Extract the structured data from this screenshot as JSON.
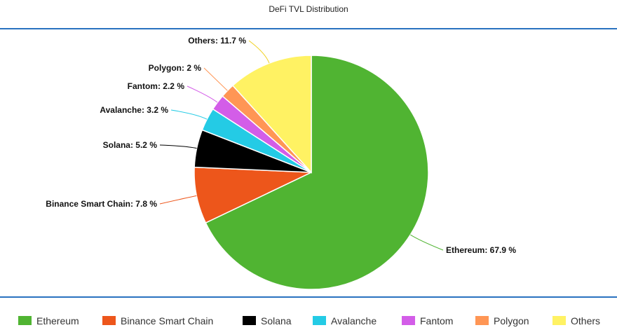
{
  "chart_data": {
    "type": "pie",
    "title": "DeFi TVL Distribution",
    "unit": "%",
    "slices": [
      {
        "name": "Ethereum",
        "value": 67.9,
        "label": "Ethereum: 67.9 %",
        "color": "#50b432"
      },
      {
        "name": "Binance Smart Chain",
        "value": 7.8,
        "label": "Binance Smart Chain: 7.8 %",
        "color": "#ed561b"
      },
      {
        "name": "Solana",
        "value": 5.2,
        "label": "Solana: 5.2 %",
        "color": "#000000"
      },
      {
        "name": "Avalanche",
        "value": 3.2,
        "label": "Avalanche: 3.2 %",
        "color": "#24cbe5"
      },
      {
        "name": "Fantom",
        "value": 2.2,
        "label": "Fantom: 2.2 %",
        "color": "#d35de8"
      },
      {
        "name": "Polygon",
        "value": 2,
        "label": "Polygon: 2 %",
        "color": "#ff9655"
      },
      {
        "name": "Others",
        "value": 11.7,
        "label": "Others: 11.7 %",
        "color": "#fff263"
      }
    ],
    "legend_position": "bottom"
  }
}
